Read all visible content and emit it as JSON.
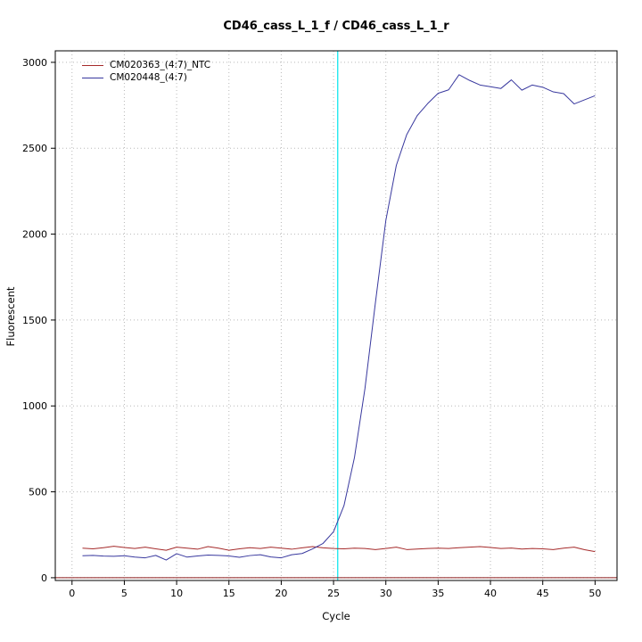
{
  "title": "CD46_cass_L_1_f / CD46_cass_L_1_r",
  "chart_data": {
    "type": "line",
    "title": "CD46_cass_L_1_f / CD46_cass_L_1_r",
    "xlabel": "Cycle",
    "ylabel": "Fluorescent",
    "xlim": [
      -1.6,
      52.1
    ],
    "ylim": [
      -16,
      3067
    ],
    "xticks": [
      0,
      5,
      10,
      15,
      20,
      25,
      30,
      35,
      40,
      45,
      50
    ],
    "yticks": [
      0,
      500,
      1000,
      1500,
      2000,
      2500,
      3000
    ],
    "grid": true,
    "grid_color": "#b8b8b8",
    "legend_position": "top-left",
    "threshold_line": {
      "x": 25.4,
      "color": "#00e5ee"
    },
    "baseline_line": {
      "y": 0,
      "color": "#8b1a1a"
    },
    "x": [
      1,
      2,
      3,
      4,
      5,
      6,
      7,
      8,
      9,
      10,
      11,
      12,
      13,
      14,
      15,
      16,
      17,
      18,
      19,
      20,
      21,
      22,
      23,
      24,
      25,
      26,
      27,
      28,
      29,
      30,
      31,
      32,
      33,
      34,
      35,
      36,
      37,
      38,
      39,
      40,
      41,
      42,
      43,
      44,
      45,
      46,
      47,
      48,
      49,
      50
    ],
    "series": [
      {
        "name": "CM020363_(4:7)_NTC",
        "color": "#a52a2a",
        "values": [
          172,
          168,
          175,
          183,
          176,
          170,
          178,
          168,
          160,
          178,
          172,
          166,
          181,
          172,
          160,
          168,
          175,
          170,
          178,
          172,
          166,
          174,
          181,
          174,
          170,
          168,
          172,
          170,
          164,
          170,
          178,
          164,
          167,
          170,
          172,
          170,
          175,
          178,
          181,
          176,
          170,
          173,
          167,
          170,
          168,
          164,
          172,
          178,
          163,
          152
        ]
      },
      {
        "name": "CM020448_(4:7)",
        "color": "#38389e",
        "values": [
          128,
          130,
          126,
          125,
          128,
          120,
          116,
          130,
          103,
          140,
          120,
          127,
          132,
          130,
          127,
          119,
          129,
          134,
          121,
          116,
          134,
          141,
          168,
          200,
          268,
          420,
          700,
          1100,
          1600,
          2080,
          2400,
          2580,
          2690,
          2760,
          2820,
          2840,
          2928,
          2895,
          2868,
          2858,
          2848,
          2898,
          2838,
          2868,
          2855,
          2828,
          2818,
          2758,
          2782,
          2806
        ]
      }
    ]
  }
}
